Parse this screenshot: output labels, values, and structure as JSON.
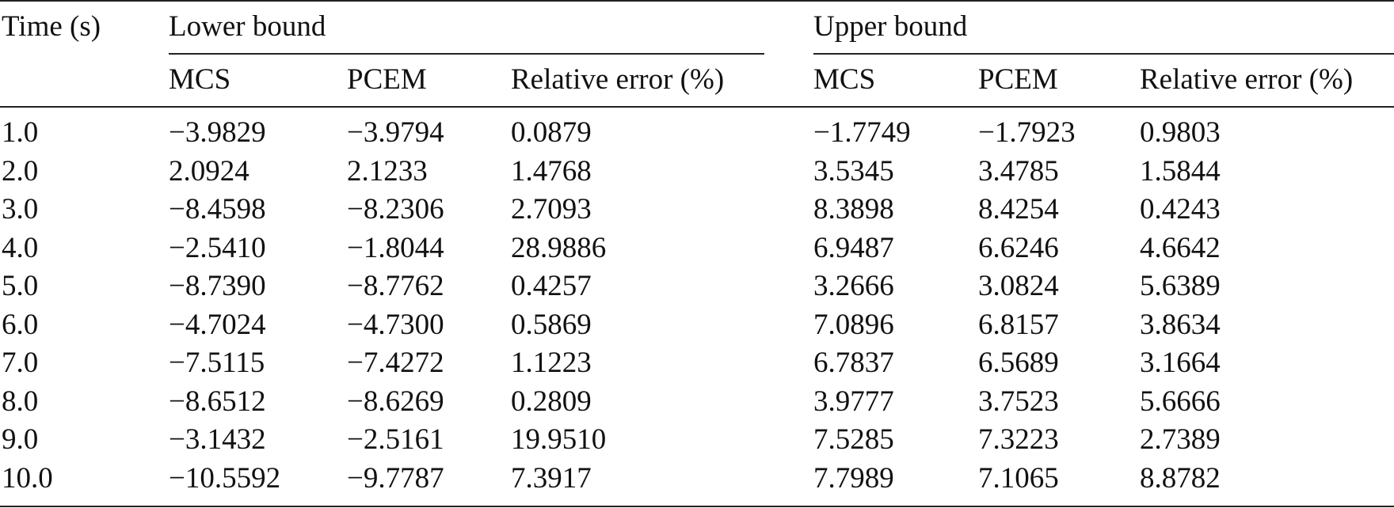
{
  "header": {
    "time": "Time (s)",
    "groups": [
      "Lower bound",
      "Upper bound"
    ],
    "columns": [
      "MCS",
      "PCEM",
      "Relative error (%)",
      "MCS",
      "PCEM",
      "Relative error (%)"
    ]
  },
  "table": {
    "rows": [
      [
        "1.0",
        "−3.9829",
        "−3.9794",
        "0.0879",
        "−1.7749",
        "−1.7923",
        "0.9803"
      ],
      [
        "2.0",
        "2.0924",
        "2.1233",
        "1.4768",
        "3.5345",
        "3.4785",
        "1.5844"
      ],
      [
        "3.0",
        "−8.4598",
        "−8.2306",
        "2.7093",
        "8.3898",
        "8.4254",
        "0.4243"
      ],
      [
        "4.0",
        "−2.5410",
        "−1.8044",
        "28.9886",
        "6.9487",
        "6.6246",
        "4.6642"
      ],
      [
        "5.0",
        "−8.7390",
        "−8.7762",
        "0.4257",
        "3.2666",
        "3.0824",
        "5.6389"
      ],
      [
        "6.0",
        "−4.7024",
        "−4.7300",
        "0.5869",
        "7.0896",
        "6.8157",
        "3.8634"
      ],
      [
        "7.0",
        "−7.5115",
        "−7.4272",
        "1.1223",
        "6.7837",
        "6.5689",
        "3.1664"
      ],
      [
        "8.0",
        "−8.6512",
        "−8.6269",
        "0.2809",
        "3.9777",
        "3.7523",
        "5.6666"
      ],
      [
        "9.0",
        "−3.1432",
        "−2.5161",
        "19.9510",
        "7.5285",
        "7.3223",
        "2.7389"
      ],
      [
        "10.0",
        "−10.5592",
        "−9.7787",
        "7.3917",
        "7.7989",
        "7.1065",
        "8.8782"
      ]
    ]
  }
}
